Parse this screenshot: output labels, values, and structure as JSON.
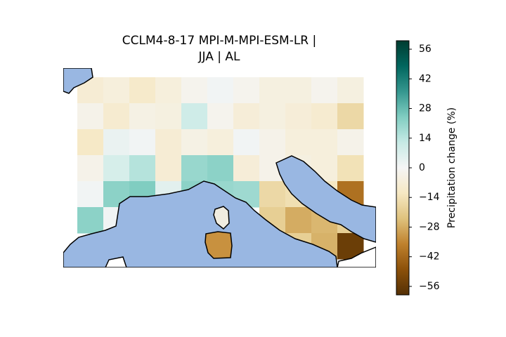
{
  "chart_data": {
    "type": "heatmap",
    "title": [
      "CCLM4-8-17 MPI-M-MPI-ESM-LR |",
      "JJA | AL"
    ],
    "colorbar_label": "Precipitation change (%)",
    "colormap": "BrBG",
    "clim": [
      -60,
      60
    ],
    "cticks": [
      {
        "value": -56,
        "label": "−56"
      },
      {
        "value": -42,
        "label": "−42"
      },
      {
        "value": -28,
        "label": "−28"
      },
      {
        "value": -14,
        "label": "−14"
      },
      0,
      14,
      28,
      42,
      56
    ],
    "values": [
      [
        -8,
        -6,
        -10,
        -6,
        -2,
        1,
        -2,
        -5,
        -5,
        -2,
        -5
      ],
      [
        -3,
        -9,
        -4,
        -5,
        10,
        -2,
        -7,
        -5,
        -7,
        -9,
        -17
      ],
      [
        -11,
        3,
        1,
        -8,
        -4,
        -6,
        1,
        -3,
        -6,
        -6,
        -3
      ],
      [
        -3,
        8,
        15,
        -8,
        20,
        22,
        -7,
        -3,
        -5,
        -6,
        -14
      ],
      [
        1,
        22,
        24,
        5,
        22,
        20,
        19,
        -17,
        -15,
        -12,
        -40
      ],
      [
        22,
        1,
        null,
        null,
        null,
        -5,
        null,
        -20,
        -28,
        -26,
        -20
      ],
      [
        null,
        null,
        null,
        null,
        null,
        -33,
        null,
        null,
        -20,
        -27,
        -55
      ]
    ]
  }
}
